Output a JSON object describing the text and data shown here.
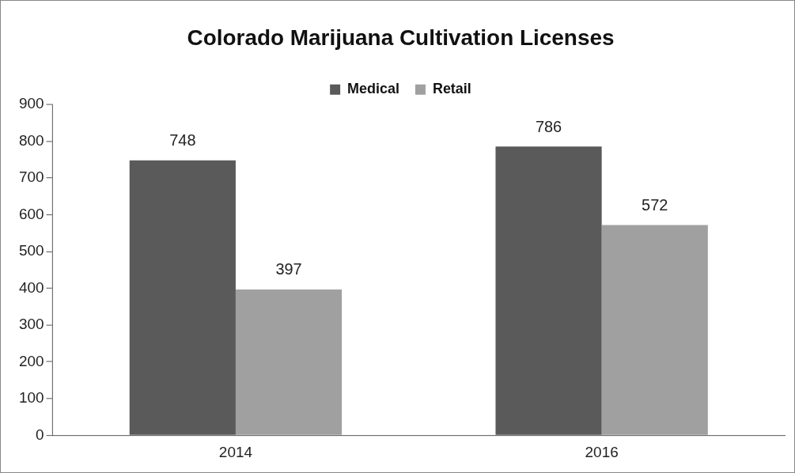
{
  "chart_data": {
    "type": "bar",
    "title": "Colorado Marijuana Cultivation Licenses",
    "categories": [
      "2014",
      "2016"
    ],
    "series": [
      {
        "name": "Medical",
        "color": "#5a5a5a",
        "values": [
          748,
          786
        ]
      },
      {
        "name": "Retail",
        "color": "#a0a0a0",
        "values": [
          397,
          572
        ]
      }
    ],
    "ylim": [
      0,
      900
    ],
    "yticks": [
      0,
      100,
      200,
      300,
      400,
      500,
      600,
      700,
      800,
      900
    ],
    "grid": false,
    "legend": "top",
    "data_labels": true
  }
}
